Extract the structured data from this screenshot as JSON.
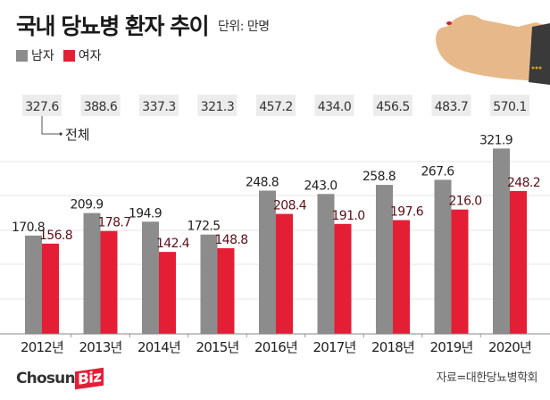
{
  "chart_data": {
    "type": "bar",
    "title": "국내 당뇨병 환자 추이",
    "unit": "단위: 만명",
    "categories": [
      "2012년",
      "2013년",
      "2014년",
      "2015년",
      "2016년",
      "2017년",
      "2018년",
      "2019년",
      "2020년"
    ],
    "series": [
      {
        "name": "남자",
        "color": "#8c8c8c",
        "values": [
          170.8,
          209.9,
          194.9,
          172.5,
          248.8,
          243.0,
          258.8,
          267.6,
          321.9
        ],
        "labels": [
          "170.8",
          "209.9",
          "194.9",
          "172.5",
          "248.8",
          "243.0",
          "258.8",
          "267.6",
          "321.9"
        ]
      },
      {
        "name": "여자",
        "color": "#e41e35",
        "values": [
          156.8,
          178.7,
          142.4,
          148.8,
          208.4,
          191.0,
          197.6,
          216.0,
          248.2
        ],
        "labels": [
          "156.8",
          "178.7",
          "142.4",
          "148.8",
          "208.4",
          "191.0",
          "197.6",
          "216.0",
          "248.2"
        ]
      }
    ],
    "totals": {
      "name": "전체",
      "values": [
        "327.6",
        "388.6",
        "337.3",
        "321.3",
        "457.2",
        "434.0",
        "456.5",
        "483.7",
        "570.1"
      ]
    },
    "ylim": [
      0,
      330
    ],
    "grid": true,
    "legend": "top-left"
  },
  "source": "자료=대한당뇨병학회",
  "logo": {
    "text": "Chosun",
    "accent": "Biz"
  }
}
